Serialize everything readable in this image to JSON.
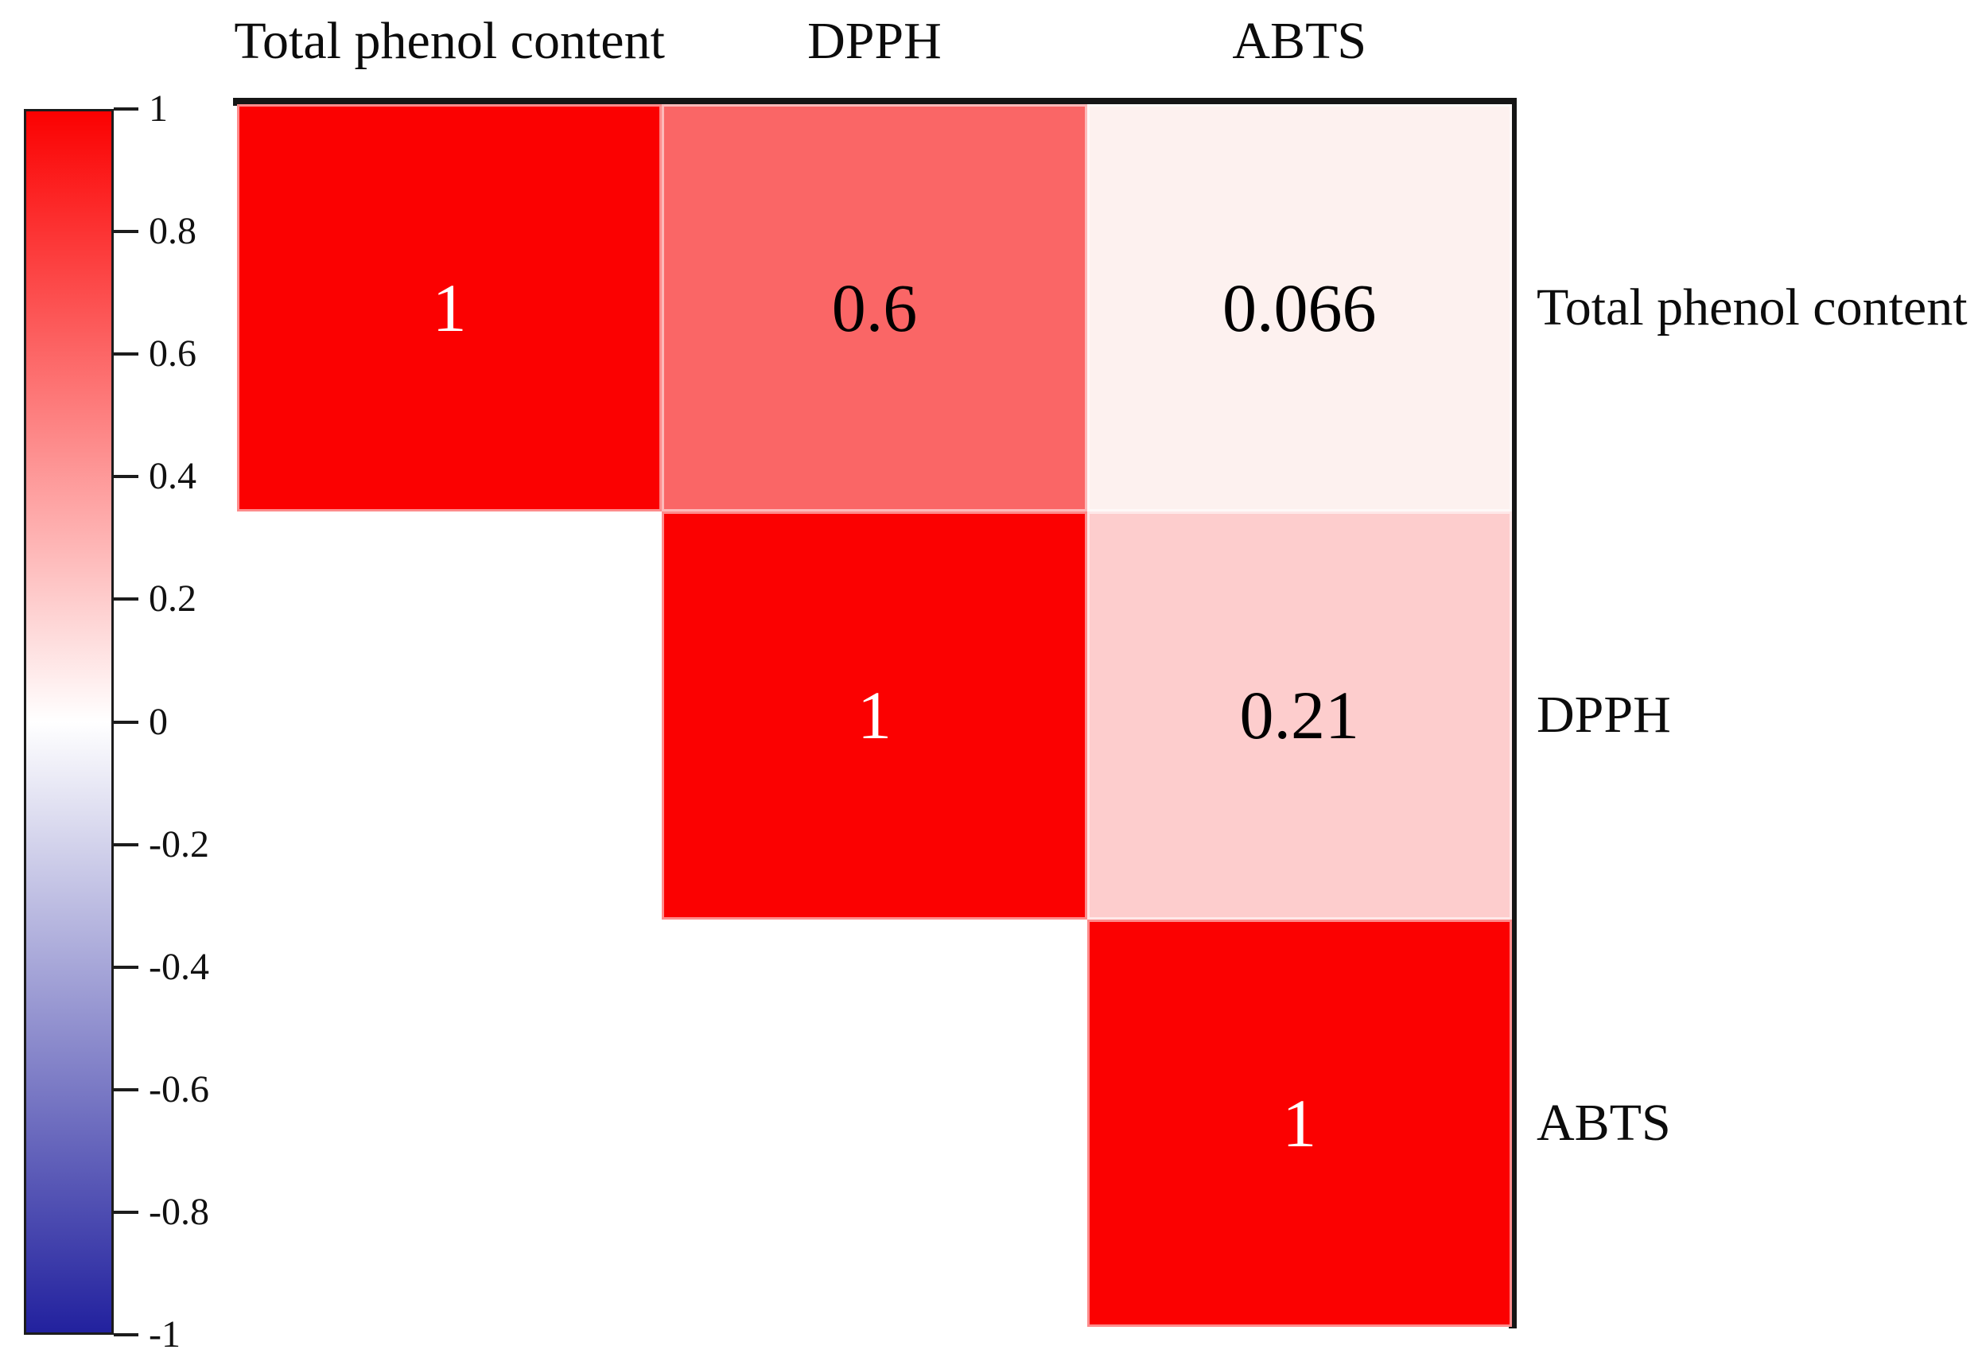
{
  "chart_data": {
    "type": "heatmap",
    "subtype": "correlation-matrix-upper-triangle",
    "variables": [
      "Total phenol content",
      "DPPH",
      "ABTS"
    ],
    "column_headers": [
      "Total phenol content",
      "DPPH",
      "ABTS"
    ],
    "row_labels": [
      "Total phenol content",
      "DPPH",
      "ABTS"
    ],
    "cells": [
      {
        "row": "Total phenol content",
        "col": "Total phenol content",
        "value": 1,
        "label": "1",
        "color": "#fb0101",
        "text_color": "#ffffff"
      },
      {
        "row": "Total phenol content",
        "col": "DPPH",
        "value": 0.6,
        "label": "0.6",
        "color": "#fa6666",
        "text_color": "#000000"
      },
      {
        "row": "Total phenol content",
        "col": "ABTS",
        "value": 0.066,
        "label": "0.066",
        "color": "#fdf1ef",
        "text_color": "#000000"
      },
      {
        "row": "DPPH",
        "col": "DPPH",
        "value": 1,
        "label": "1",
        "color": "#fb0101",
        "text_color": "#ffffff"
      },
      {
        "row": "DPPH",
        "col": "ABTS",
        "value": 0.21,
        "label": "0.21",
        "color": "#fdcdcd",
        "text_color": "#000000"
      },
      {
        "row": "ABTS",
        "col": "ABTS",
        "value": 1,
        "label": "1",
        "color": "#fb0101",
        "text_color": "#ffffff"
      }
    ],
    "colorbar": {
      "min": -1,
      "max": 1,
      "tick_labels": [
        "1",
        "0.8",
        "0.6",
        "0.4",
        "0.2",
        "0",
        "-0.2",
        "-0.4",
        "-0.6",
        "-0.8",
        "-1"
      ],
      "top_color": "#fb0101",
      "mid_color": "#ffffff",
      "bottom_color": "#22219e"
    },
    "grid": false,
    "legend_position": "left",
    "frame_color": "#151515",
    "background_color": "#ffffff"
  }
}
